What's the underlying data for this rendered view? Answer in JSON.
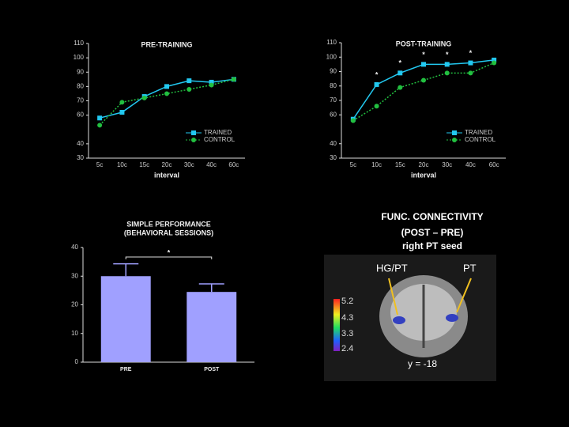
{
  "chart_data": [
    {
      "type": "line",
      "title": "PRE-TRAINING",
      "x_label": "interval",
      "categories": [
        "5c",
        "10c",
        "15c",
        "20c",
        "30c",
        "40c",
        "60c"
      ],
      "series": [
        {
          "name": "TRAINED",
          "color": "#22c8f0",
          "values": [
            58,
            62,
            73,
            80,
            84,
            83,
            85
          ]
        },
        {
          "name": "CONTROL",
          "color": "#22c040",
          "values": [
            53,
            69,
            72,
            75,
            78,
            81,
            85
          ]
        }
      ],
      "ylim": [
        30,
        110
      ],
      "yticks": [
        30,
        40,
        60,
        70,
        80,
        90,
        100,
        110
      ],
      "annotations": [],
      "legend": "lower right"
    },
    {
      "type": "line",
      "title": "POST-TRAINING",
      "x_label": "interval",
      "categories": [
        "5c",
        "10c",
        "15c",
        "20c",
        "30c",
        "40c",
        "60c"
      ],
      "series": [
        {
          "name": "TRAINED",
          "color": "#22c8f0",
          "values": [
            57,
            81,
            89,
            95,
            95,
            96,
            98
          ]
        },
        {
          "name": "CONTROL",
          "color": "#22c040",
          "values": [
            56,
            66,
            79,
            84,
            89,
            89,
            96
          ]
        }
      ],
      "ylim": [
        30,
        110
      ],
      "yticks": [
        30,
        40,
        60,
        70,
        80,
        90,
        100,
        110
      ],
      "annotations": [
        {
          "text": "*",
          "x": "10c"
        },
        {
          "text": "*",
          "x": "15c"
        },
        {
          "text": "*",
          "x": "20c"
        },
        {
          "text": "*",
          "x": "30c"
        },
        {
          "text": "*",
          "x": "40c"
        }
      ],
      "legend": "lower right"
    },
    {
      "type": "bar",
      "title": "SIMPLE PERFORMANCE",
      "subtitle": "(BEHAVIORAL SESSIONS)",
      "categories": [
        "PRE",
        "POST"
      ],
      "values": [
        30,
        24.5
      ],
      "errors": [
        4.3,
        2.8
      ],
      "color": "#a0a0ff",
      "ylim": [
        0,
        40
      ],
      "yticks": [
        0,
        10,
        20,
        30,
        40
      ],
      "annotations": [
        {
          "text": "*",
          "x": [
            "PRE",
            "POST"
          ]
        }
      ]
    }
  ],
  "figure": {
    "title": [
      "FUNC. CONNECTIVITY",
      "(POST – PRE)",
      "right PT seed"
    ],
    "labels": [
      "HG/PT",
      "PT",
      "y = -18"
    ],
    "colorbar": [
      "5.2",
      "4.3",
      "3.3",
      "2.4"
    ]
  }
}
